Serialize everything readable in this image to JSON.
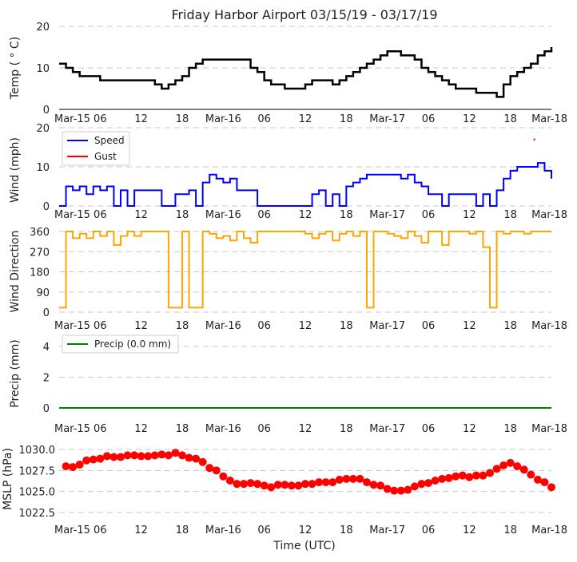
{
  "chart_data": [
    {
      "type": "line",
      "title": "Friday Harbor Airport 03/15/19 - 03/17/19",
      "ylabel": "Temp ($^\\circ$C)",
      "ylabel_display": "Temp ( ° C)",
      "ylim": [
        0,
        20
      ],
      "yticks": [
        "0",
        "10",
        "20"
      ],
      "x_hours_from": "Mar-15 00 UTC",
      "series": [
        {
          "name": "Temp",
          "color": "#000000",
          "values": [
            11,
            10,
            9,
            8,
            8,
            8,
            7,
            7,
            7,
            7,
            7,
            7,
            7,
            7,
            6,
            5,
            6,
            7,
            8,
            10,
            11,
            12,
            12,
            12,
            12,
            12,
            12,
            12,
            10,
            9,
            7,
            6,
            6,
            5,
            5,
            5,
            6,
            7,
            7,
            7,
            6,
            7,
            8,
            9,
            10,
            11,
            12,
            13,
            14,
            14,
            13,
            13,
            12,
            10,
            9,
            8,
            7,
            6,
            5,
            5,
            5,
            4,
            4,
            4,
            3,
            6,
            8,
            9,
            10,
            11,
            13,
            14,
            15
          ]
        }
      ]
    },
    {
      "type": "line",
      "ylabel": "Wind (mph)",
      "ylim": [
        0,
        20
      ],
      "yticks": [
        "0",
        "10",
        "20"
      ],
      "legend": "top-left",
      "series": [
        {
          "name": "Speed",
          "color": "#0000ff",
          "values": [
            0,
            5,
            4,
            5,
            3,
            5,
            4,
            5,
            0,
            4,
            0,
            4,
            4,
            4,
            4,
            0,
            0,
            3,
            3,
            4,
            0,
            6,
            8,
            7,
            6,
            7,
            4,
            4,
            4,
            0,
            0,
            0,
            0,
            0,
            0,
            0,
            0,
            3,
            4,
            0,
            3,
            0,
            5,
            6,
            7,
            8,
            8,
            8,
            8,
            8,
            7,
            8,
            6,
            5,
            3,
            3,
            0,
            3,
            3,
            3,
            3,
            0,
            3,
            0,
            4,
            7,
            9,
            10,
            10,
            10,
            11,
            9,
            7
          ]
        },
        {
          "name": "Gust",
          "color": "#ff0000",
          "points": [
            [
              69.5,
              17
            ]
          ]
        }
      ]
    },
    {
      "type": "line",
      "ylabel": "Wind Direction",
      "ylim": [
        0,
        360
      ],
      "yticks": [
        "0",
        "90",
        "180",
        "270",
        "360"
      ],
      "series": [
        {
          "name": "Direction",
          "color": "#ffa500",
          "values": [
            20,
            360,
            330,
            350,
            330,
            360,
            340,
            360,
            300,
            340,
            360,
            340,
            360,
            360,
            360,
            360,
            20,
            20,
            360,
            20,
            20,
            360,
            350,
            330,
            340,
            320,
            360,
            330,
            310,
            360,
            360,
            360,
            360,
            360,
            360,
            360,
            350,
            330,
            350,
            360,
            320,
            350,
            360,
            340,
            360,
            20,
            360,
            360,
            350,
            340,
            330,
            360,
            340,
            310,
            360,
            360,
            300,
            360,
            360,
            360,
            350,
            360,
            290,
            20,
            360,
            350,
            360,
            360,
            350,
            360,
            360,
            360,
            360
          ]
        }
      ]
    },
    {
      "type": "line",
      "ylabel": "Precip (mm)",
      "ylim": [
        -0.5,
        5
      ],
      "yticks": [
        "0",
        "2",
        "4"
      ],
      "legend": "top-left",
      "series": [
        {
          "name": "Precip (0.0 mm)",
          "color": "#008000",
          "values": [
            0,
            0
          ]
        }
      ]
    },
    {
      "type": "scatter",
      "ylabel": "MSLP (hPa)",
      "xlabel": "Time (UTC)",
      "ylim": [
        1021.5,
        1030.8
      ],
      "yticks": [
        "1022.5",
        "1025.0",
        "1027.5",
        "1030.0"
      ],
      "series": [
        {
          "name": "MSLP",
          "color": "#ff0000",
          "x_start_hour": 1,
          "values": [
            1028.0,
            1027.9,
            1028.2,
            1028.7,
            1028.8,
            1028.9,
            1029.2,
            1029.1,
            1029.1,
            1029.3,
            1029.3,
            1029.2,
            1029.2,
            1029.3,
            1029.4,
            1029.3,
            1029.6,
            1029.3,
            1029.0,
            1028.9,
            1028.5,
            1027.8,
            1027.5,
            1026.8,
            1026.3,
            1025.9,
            1025.9,
            1026.0,
            1025.9,
            1025.7,
            1025.5,
            1025.8,
            1025.8,
            1025.7,
            1025.7,
            1025.9,
            1025.9,
            1026.1,
            1026.1,
            1026.1,
            1026.4,
            1026.5,
            1026.5,
            1026.5,
            1026.1,
            1025.8,
            1025.7,
            1025.3,
            1025.1,
            1025.1,
            1025.2,
            1025.6,
            1025.9,
            1026.0,
            1026.3,
            1026.5,
            1026.6,
            1026.8,
            1026.9,
            1026.7,
            1026.9,
            1026.9,
            1027.2,
            1027.7,
            1028.1,
            1028.4,
            1028.0,
            1027.6,
            1027.0,
            1026.4,
            1026.1,
            1025.5
          ]
        }
      ]
    }
  ],
  "xticks": [
    "Mar-15",
    "06",
    "12",
    "18",
    "Mar-16",
    "06",
    "12",
    "18",
    "Mar-17",
    "06",
    "12",
    "18",
    "Mar-18"
  ],
  "xlim_hours": [
    0,
    72
  ]
}
